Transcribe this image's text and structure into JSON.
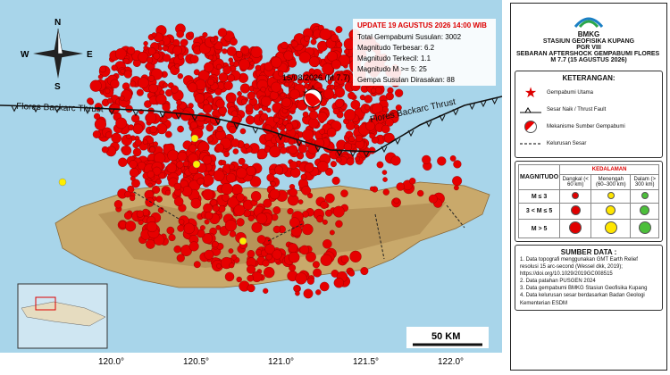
{
  "map": {
    "info_box": {
      "title": "UPDATE 19 AGUSTUS 2026 14:00 WIB",
      "lines": [
        "Total Gempabumi Susulan: 3002",
        "Magnitudo Terbesar: 6.2",
        "Magnitudo Terkecil: 1.1",
        "Magnitudo M >= 5: 25",
        "Gempa Susulan Dirasakan: 88"
      ]
    },
    "epicenter_label": "15/08/2026 (M 7.7)",
    "fault_labels": [
      "Flores Backarc Thrust",
      "Flores Backarc Thrust"
    ],
    "compass": {
      "n": "N",
      "e": "E",
      "s": "S",
      "w": "W"
    },
    "scale_label": "50 KM",
    "lon_labels": [
      "120.0°",
      "120.5°",
      "121.0°",
      "121.5°",
      "122.0°"
    ]
  },
  "panel": {
    "agency": "BMKG",
    "station": "STASIUN GEOFISIKA KUPANG",
    "region": "PGR VIII",
    "title": "SEBARAN AFTERSHOCK GEMPABUMI FLORES",
    "subtitle": "M 7.7 (15 AGUSTUS 2026)",
    "legend_title": "KETERANGAN:",
    "legend_items": [
      "Gempabumi Utama",
      "Sesar Naik / Thrust Fault",
      "Mekanisme Sumber Gempabumi",
      "Kelurusan Sesar"
    ],
    "depth_title": "KEDALAMAN",
    "mag_title": "MAGNITUDO",
    "depth_cols": [
      "Dangkal (< 60 km)",
      "Menengah (60–300 km)",
      "Dalam (> 300 km)"
    ],
    "mag_rows": [
      "M ≤ 3",
      "3 < M ≤ 5",
      "M > 5"
    ],
    "source_title": "SUMBER DATA :",
    "sources": [
      "1. Data topografi menggunakan GMT Earth Relief resolusi 15 arc-second (Wessel dkk, 2019); https://doi.org/10.1029/2019GC008515",
      "2. Data patahan PUSGEN 2024",
      "3. Data gempabumi BMKG Stasiun Geofisika Kupang",
      "4. Data kelurusan sesar berdasarkan Badan Geologi Kementerian ESDM"
    ]
  }
}
